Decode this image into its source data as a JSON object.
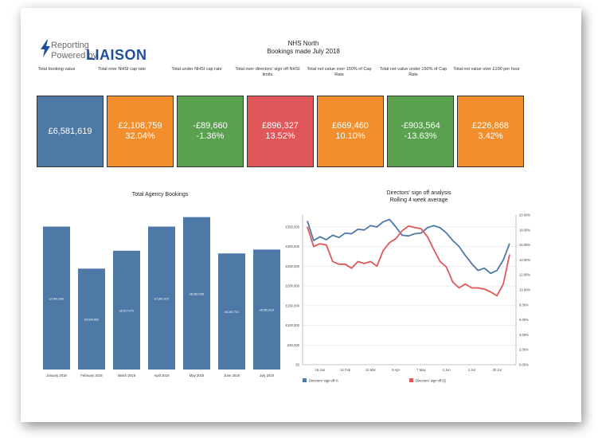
{
  "header": {
    "logo_reporting": "Reporting",
    "logo_powered": "Powered by",
    "logo_brand": "LIAISON",
    "title": "NHS North",
    "subtitle": "Bookings made July 2018"
  },
  "kpis": [
    {
      "label": "Total booking value",
      "value": "£6,581,619",
      "pct": "",
      "color": "#4e79a7"
    },
    {
      "label": "Total over NHSI cap rate",
      "value": "£2,108,759",
      "pct": "32.04%",
      "color": "#f28e2b"
    },
    {
      "label": "Total under NHSI cap rate",
      "value": "-£89,660",
      "pct": "-1.36%",
      "color": "#59a14f"
    },
    {
      "label": "Total over directors' sign off NHSI limits",
      "value": "£896,327",
      "pct": "13.52%",
      "color": "#e15759"
    },
    {
      "label": "Total net value over 150% of Cap Rate",
      "value": "£669,460",
      "pct": "10.10%",
      "color": "#f28e2b"
    },
    {
      "label": "Total net value under 150% of Cap Rate",
      "value": "-£903,564",
      "pct": "-13.63%",
      "color": "#59a14f"
    },
    {
      "label": "Total net value over £100 per hour",
      "value": "£226,868",
      "pct": "3.42%",
      "color": "#f28e2b"
    }
  ],
  "chart_data": [
    {
      "type": "bar",
      "title": "Total Agency Bookings",
      "categories": [
        "January 2018",
        "February 2018",
        "March 2018",
        "April 2018",
        "May 2018",
        "June 2018",
        "July 2018"
      ],
      "values": [
        7841500,
        5534860,
        6517472,
        7841470,
        8362005,
        6367701,
        6581619
      ],
      "data_labels": [
        "£7,841,500",
        "£5,534,860",
        "£6,517,472",
        "£7,841,470",
        "£8,362,005",
        "£6,367,701",
        "£6,581,619"
      ],
      "ylim": [
        0,
        9000000
      ],
      "color": "#4e79a7"
    },
    {
      "type": "line",
      "title": "Directors' sign off analysis",
      "subtitle": "Rolling 4 week average",
      "x_ticks": [
        "15 Jan",
        "12 Feb",
        "12 Mar",
        "9 Apr",
        "7 May",
        "4 Jun",
        "2 Jul",
        "30 Jul"
      ],
      "y_left_ticks": [
        "£0",
        "£50,000",
        "£100,000",
        "£150,000",
        "£200,000",
        "£250,000",
        "£300,000",
        "£350,000"
      ],
      "y_right_ticks": [
        "0.00%",
        "2.00%",
        "4.00%",
        "6.00%",
        "8.00%",
        "10.00%",
        "12.00%",
        "14.00%",
        "16.00%",
        "18.00%",
        "20.00%"
      ],
      "ylim_left": [
        0,
        380000
      ],
      "ylim_right": [
        0,
        20
      ],
      "legend_position": "bottom",
      "series": [
        {
          "name": "Directors' sign off %",
          "axis": "right",
          "color": "#4e79a7",
          "values": [
            19.2,
            16.6,
            17.1,
            16.7,
            17.3,
            17.0,
            17.6,
            17.5,
            18.1,
            18.0,
            18.6,
            18.4,
            19.1,
            19.4,
            18.4,
            17.3,
            17.2,
            17.5,
            17.6,
            18.3,
            18.6,
            18.3,
            17.6,
            16.6,
            15.8,
            14.6,
            13.5,
            12.6,
            12.9,
            12.2,
            12.6,
            14.0,
            16.2
          ]
        },
        {
          "name": "Directors' sign off (£)",
          "axis": "left",
          "color": "#e15759",
          "values": [
            350000,
            300000,
            307000,
            304000,
            262000,
            255000,
            255000,
            245000,
            262000,
            257000,
            262000,
            250000,
            290000,
            310000,
            320000,
            340000,
            352000,
            348000,
            345000,
            325000,
            292000,
            262000,
            248000,
            210000,
            195000,
            205000,
            195000,
            195000,
            192000,
            185000,
            175000,
            205000,
            280000
          ]
        }
      ]
    }
  ]
}
